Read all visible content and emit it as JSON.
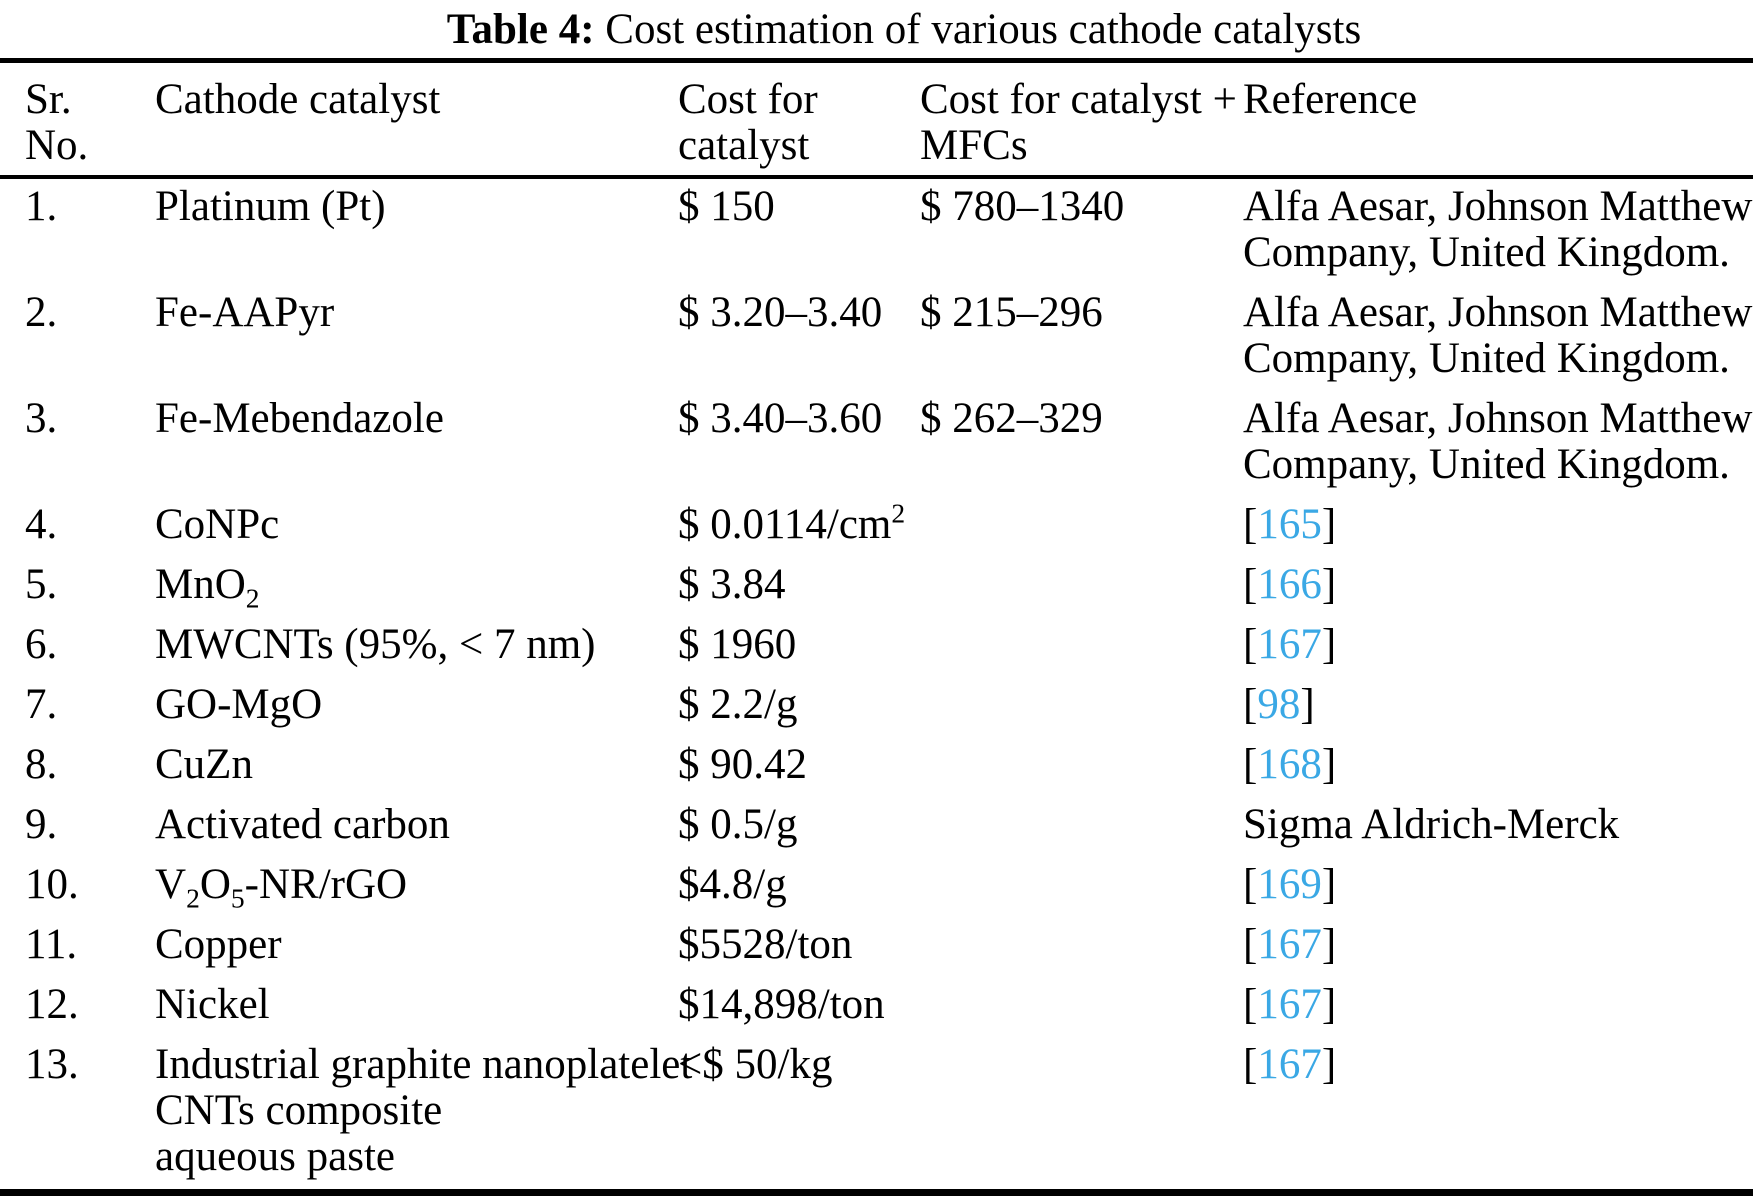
{
  "caption": {
    "label": "Table 4:",
    "text": " Cost estimation of various cathode catalysts"
  },
  "columns": [
    "Sr.\nNo.",
    "Cathode catalyst",
    "Cost for\ncatalyst",
    "Cost for catalyst +\nMFCs",
    "Reference"
  ],
  "colors": {
    "citation_blue": "#3AA8E5",
    "text_black": "#000000",
    "background": "#ffffff"
  },
  "rows": [
    {
      "sr": "1.",
      "catalyst": "Platinum (Pt)",
      "cost": "$ 150",
      "cost_mfc": "$ 780–1340",
      "reference": {
        "type": "text",
        "value": "Alfa Aesar, Johnson Matthew\nCompany, United Kingdom."
      }
    },
    {
      "sr": "2.",
      "catalyst": "Fe-AAPyr",
      "cost": "$ 3.20–3.40",
      "cost_mfc": "$ 215–296",
      "reference": {
        "type": "text",
        "value": "Alfa Aesar, Johnson Matthew\nCompany, United Kingdom."
      }
    },
    {
      "sr": "3.",
      "catalyst": "Fe-Mebendazole",
      "cost": "$ 3.40–3.60",
      "cost_mfc": "$ 262–329",
      "reference": {
        "type": "text",
        "value": "Alfa Aesar, Johnson Matthew\nCompany, United Kingdom."
      }
    },
    {
      "sr": "4.",
      "catalyst": "CoNPc",
      "cost": "$ 0.0114/cm^{2}",
      "cost_mfc": "",
      "reference": {
        "type": "citation",
        "num": "165"
      }
    },
    {
      "sr": "5.",
      "catalyst": "MnO_{2}",
      "cost": "$ 3.84",
      "cost_mfc": "",
      "reference": {
        "type": "citation",
        "num": "166"
      }
    },
    {
      "sr": "6.",
      "catalyst": "MWCNTs (95%, < 7 nm)",
      "cost": "$ 1960",
      "cost_mfc": "",
      "reference": {
        "type": "citation",
        "num": "167"
      }
    },
    {
      "sr": "7.",
      "catalyst": "GO-MgO",
      "cost": "$ 2.2/g",
      "cost_mfc": "",
      "reference": {
        "type": "citation",
        "num": "98"
      }
    },
    {
      "sr": "8.",
      "catalyst": "CuZn",
      "cost": "$ 90.42",
      "cost_mfc": "",
      "reference": {
        "type": "citation",
        "num": "168"
      }
    },
    {
      "sr": "9.",
      "catalyst": "Activated carbon",
      "cost": "$ 0.5/g",
      "cost_mfc": "",
      "reference": {
        "type": "text",
        "value": "Sigma Aldrich-Merck"
      }
    },
    {
      "sr": "10.",
      "catalyst": "V_{2}O_{5}-NR/rGO",
      "cost": "$4.8/g",
      "cost_mfc": "",
      "reference": {
        "type": "citation",
        "num": "169"
      }
    },
    {
      "sr": "11.",
      "catalyst": "Copper",
      "cost": "$5528/ton",
      "cost_mfc": "",
      "reference": {
        "type": "citation",
        "num": "167"
      }
    },
    {
      "sr": "12.",
      "catalyst": "Nickel",
      "cost": "$14,898/ton",
      "cost_mfc": "",
      "reference": {
        "type": "citation",
        "num": "167"
      }
    },
    {
      "sr": "13.",
      "catalyst": "Industrial graphite nanoplatelet\nCNTs composite\naqueous paste",
      "cost": "<$ 50/kg",
      "cost_mfc": "",
      "reference": {
        "type": "citation",
        "num": "167"
      }
    }
  ]
}
